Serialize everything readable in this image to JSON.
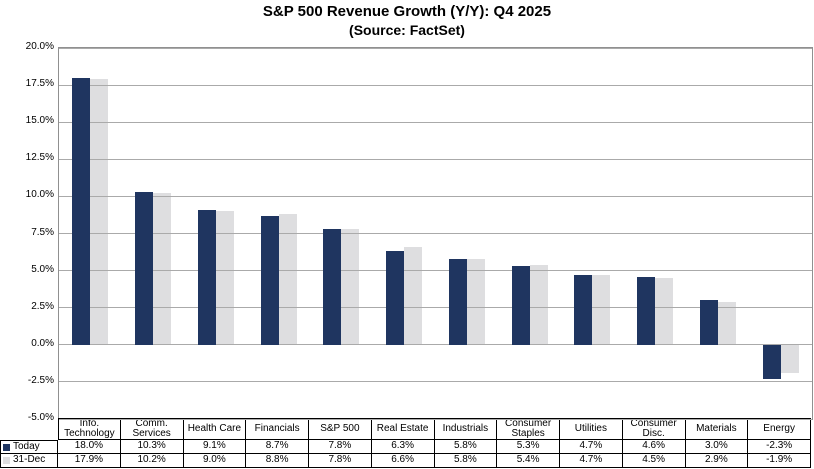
{
  "header": {
    "title": "S&P 500 Revenue Growth (Y/Y): Q4 2025",
    "subtitle": "(Source: FactSet)"
  },
  "chart_data": {
    "type": "bar",
    "title": "S&P 500 Revenue Growth (Y/Y): Q4 2025",
    "subtitle": "(Source: FactSet)",
    "categories": [
      "Info. Technology",
      "Comm. Services",
      "Health Care",
      "Financials",
      "S&P 500",
      "Real Estate",
      "Industrials",
      "Consumer Staples",
      "Utilities",
      "Consumer Disc.",
      "Materials",
      "Energy"
    ],
    "series": [
      {
        "name": "Today",
        "color": "#1f3560",
        "values": [
          18.0,
          10.3,
          9.1,
          8.7,
          7.8,
          6.3,
          5.8,
          5.3,
          4.7,
          4.6,
          3.0,
          -2.3
        ]
      },
      {
        "name": "31-Dec",
        "color": "#dedee0",
        "values": [
          17.9,
          10.2,
          9.0,
          8.8,
          7.8,
          6.6,
          5.8,
          5.4,
          4.7,
          4.5,
          2.9,
          -1.9
        ]
      }
    ],
    "xlabel": "",
    "ylabel": "",
    "ylim": [
      -5.0,
      20.0
    ],
    "ytick_step": 2.5,
    "ytick_labels": [
      "20.0%",
      "17.5%",
      "15.0%",
      "12.5%",
      "10.0%",
      "7.5%",
      "5.0%",
      "2.5%",
      "0.0%",
      "-2.5%",
      "-5.0%"
    ],
    "value_suffix": "%",
    "grid": "horizontal",
    "legend_position": "table-left",
    "colors": {
      "gridline": "#aaaaaa",
      "frame": "#909090",
      "table_border": "#000000",
      "background": "#ffffff",
      "text": "#000000"
    }
  }
}
